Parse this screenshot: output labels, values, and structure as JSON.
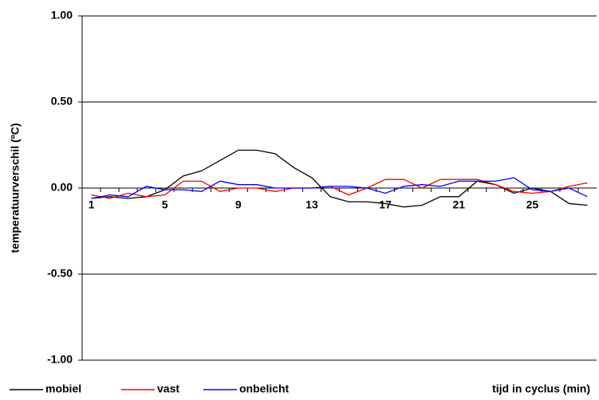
{
  "chart_data": {
    "type": "line",
    "y_label": "temperatuurverschil (ºC)",
    "x_label": "tijd in cyclus (min)",
    "categories": [
      1,
      null,
      null,
      null,
      5,
      null,
      null,
      null,
      9,
      null,
      null,
      null,
      13,
      null,
      null,
      null,
      17,
      null,
      null,
      null,
      21,
      null,
      null,
      null,
      25,
      null,
      null,
      null
    ],
    "series": [
      {
        "name": "mobiel",
        "color": "#000000",
        "values": [
          -0.06,
          -0.05,
          -0.06,
          -0.05,
          -0.01,
          0.07,
          0.1,
          0.16,
          0.22,
          0.22,
          0.2,
          0.12,
          0.06,
          -0.05,
          -0.08,
          -0.08,
          -0.09,
          -0.11,
          -0.1,
          -0.05,
          -0.05,
          0.04,
          0.02,
          -0.03,
          0.0,
          -0.02,
          -0.09,
          -0.1
        ]
      },
      {
        "name": "vast",
        "color": "#ff0000",
        "values": [
          -0.04,
          -0.06,
          -0.03,
          -0.05,
          -0.04,
          0.04,
          0.04,
          -0.02,
          0.0,
          0.0,
          -0.02,
          0.0,
          0.0,
          0.01,
          -0.04,
          0.0,
          0.05,
          0.05,
          0.0,
          0.05,
          0.05,
          0.05,
          0.02,
          -0.02,
          -0.03,
          -0.02,
          0.01,
          0.03
        ]
      },
      {
        "name": "onbelicht",
        "color": "#0000ff",
        "values": [
          -0.06,
          -0.04,
          -0.05,
          0.01,
          -0.01,
          -0.01,
          -0.02,
          0.04,
          0.02,
          0.02,
          0.0,
          0.0,
          0.0,
          0.01,
          0.01,
          0.0,
          -0.03,
          0.01,
          0.02,
          0.01,
          0.04,
          0.04,
          0.04,
          0.06,
          -0.01,
          -0.02,
          0.0,
          -0.05
        ]
      }
    ],
    "ylim": [
      -1,
      1
    ],
    "yticks": [
      {
        "value": -1,
        "label": "-1.00"
      },
      {
        "value": -0.5,
        "label": "-0.50"
      },
      {
        "value": 0,
        "label": "0.00"
      },
      {
        "value": 0.5,
        "label": "0.50"
      },
      {
        "value": 1,
        "label": "1.00"
      }
    ],
    "grid": true
  }
}
